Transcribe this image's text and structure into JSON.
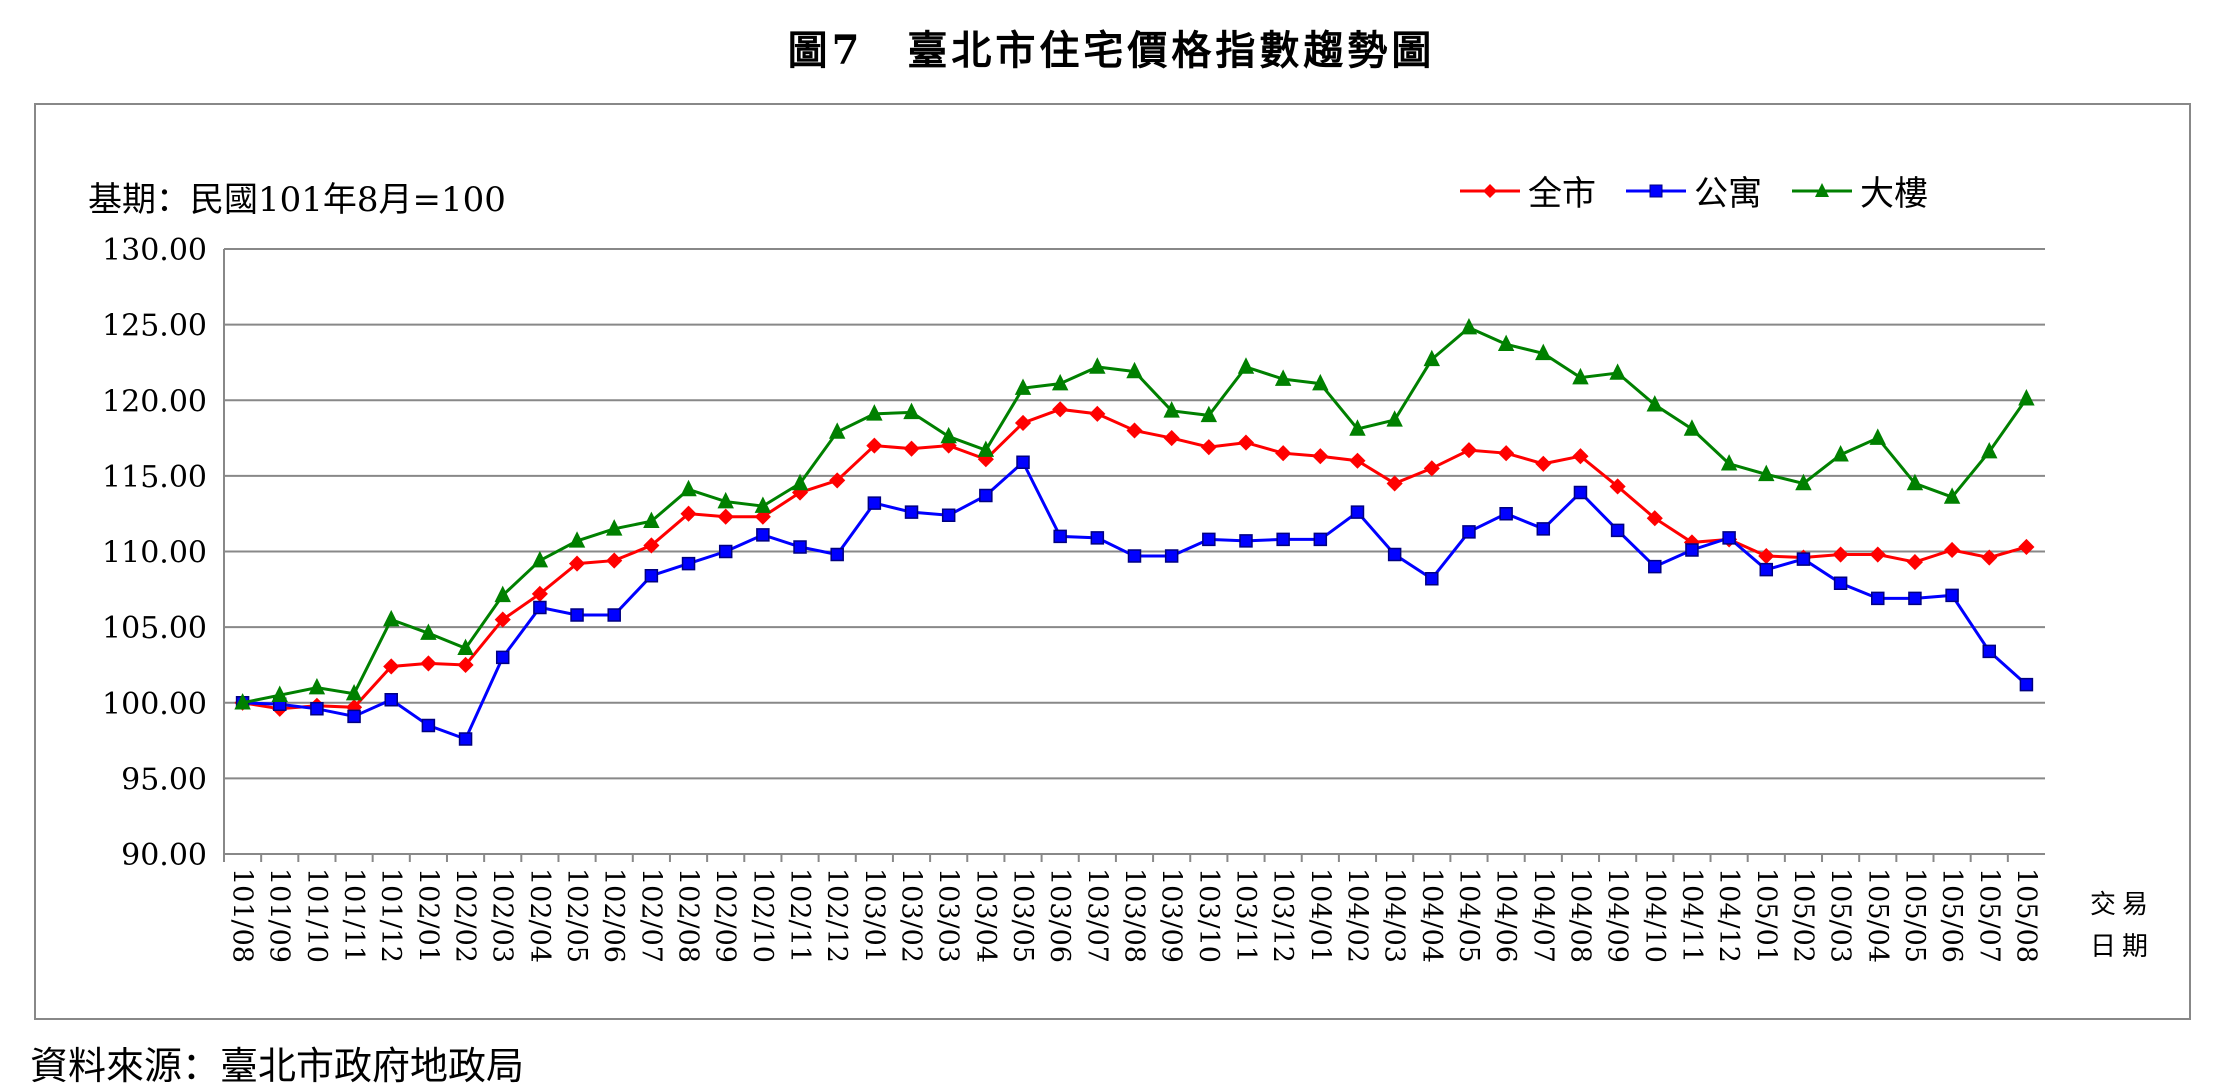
{
  "chart_data": {
    "type": "line",
    "title": "圖7　臺北市住宅價格指數趨勢圖",
    "base_note": "基期：民國101年8月=100",
    "source": "資料來源：臺北市政府地政局",
    "xlabel": "交易日期",
    "xlabel_lines": [
      "交易",
      "日期"
    ],
    "ylabel": "",
    "ylim": [
      90,
      130
    ],
    "yticks": [
      "90.00",
      "95.00",
      "100.00",
      "105.00",
      "110.00",
      "115.00",
      "120.00",
      "125.00",
      "130.00"
    ],
    "grid": true,
    "legend_position": "top-right",
    "categories": [
      "101/08",
      "101/09",
      "101/10",
      "101/11",
      "101/12",
      "102/01",
      "102/02",
      "102/03",
      "102/04",
      "102/05",
      "102/06",
      "102/07",
      "102/08",
      "102/09",
      "102/10",
      "102/11",
      "102/12",
      "103/01",
      "103/02",
      "103/03",
      "103/04",
      "103/05",
      "103/06",
      "103/07",
      "103/08",
      "103/09",
      "103/10",
      "103/11",
      "103/12",
      "104/01",
      "104/02",
      "104/03",
      "104/04",
      "104/05",
      "104/06",
      "104/07",
      "104/08",
      "104/09",
      "104/10",
      "104/11",
      "104/12",
      "105/01",
      "105/02",
      "105/03",
      "105/04",
      "105/05",
      "105/06",
      "105/07",
      "105/08"
    ],
    "series": [
      {
        "name": "全市",
        "color": "#ff0000",
        "marker": "diamond",
        "values": [
          100.0,
          99.6,
          99.8,
          99.7,
          102.4,
          102.6,
          102.5,
          105.5,
          107.2,
          109.2,
          109.4,
          110.4,
          112.5,
          112.3,
          112.3,
          113.9,
          114.7,
          117.0,
          116.8,
          117.0,
          116.1,
          118.5,
          119.4,
          119.1,
          118.0,
          117.5,
          116.9,
          117.2,
          116.5,
          116.3,
          116.0,
          114.5,
          115.5,
          116.7,
          116.5,
          115.8,
          116.3,
          114.3,
          112.2,
          110.6,
          110.8,
          109.7,
          109.6,
          109.8,
          109.8,
          109.3,
          110.1,
          109.6,
          110.3
        ]
      },
      {
        "name": "公寓",
        "color": "#0000ff",
        "marker": "square",
        "values": [
          100.0,
          99.9,
          99.6,
          99.1,
          100.2,
          98.5,
          97.6,
          103.0,
          106.3,
          105.8,
          105.8,
          108.4,
          109.2,
          110.0,
          111.1,
          110.3,
          109.8,
          113.2,
          112.6,
          112.4,
          113.7,
          115.9,
          111.0,
          110.9,
          109.7,
          109.7,
          110.8,
          110.7,
          110.8,
          110.8,
          112.6,
          109.8,
          108.2,
          111.3,
          112.5,
          111.5,
          113.9,
          111.4,
          109.0,
          110.1,
          110.9,
          108.8,
          109.5,
          107.9,
          106.9,
          106.9,
          107.1,
          103.4,
          101.2
        ]
      },
      {
        "name": "大樓",
        "color": "#008000",
        "marker": "triangle",
        "values": [
          100.0,
          100.5,
          101.0,
          100.6,
          105.5,
          104.6,
          103.6,
          107.1,
          109.4,
          110.7,
          111.5,
          112.0,
          114.1,
          113.3,
          113.0,
          114.5,
          117.9,
          119.1,
          119.2,
          117.6,
          116.7,
          120.8,
          121.1,
          122.2,
          121.9,
          119.3,
          119.0,
          122.2,
          121.4,
          121.1,
          118.1,
          118.7,
          122.7,
          124.8,
          123.7,
          123.1,
          121.5,
          121.8,
          119.7,
          118.1,
          115.8,
          115.1,
          114.5,
          116.4,
          117.5,
          114.5,
          113.6,
          116.6,
          120.1
        ]
      }
    ]
  }
}
